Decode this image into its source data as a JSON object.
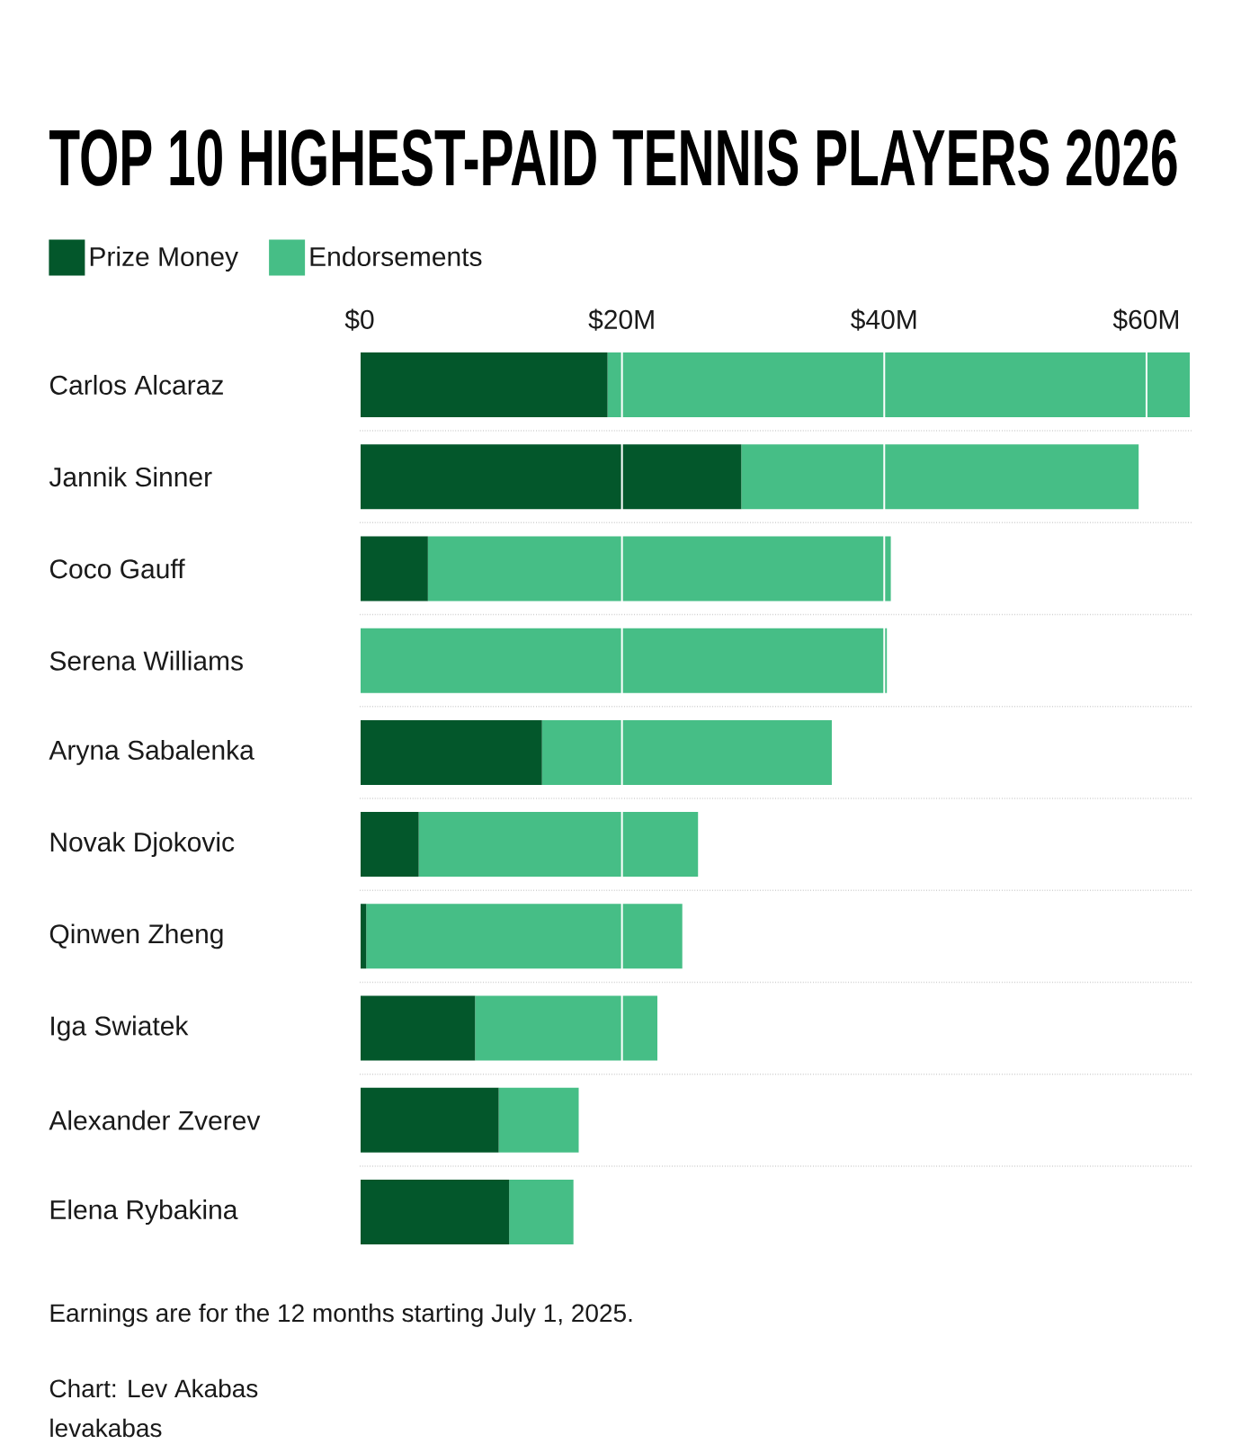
{
  "chart_data": {
    "type": "bar",
    "orientation": "horizontal",
    "stacked": true,
    "title": "TOP 10 HIGHEST-PAID TENNIS PLAYERS 2026",
    "categories": [
      "Carlos Alcaraz",
      "Jannik Sinner",
      "Coco Gauff",
      "Serena Williams",
      "Aryna Sabalenka",
      "Novak Djokovic",
      "Qinwen Zheng",
      "Iga Swiatek",
      "Alexander Zverev",
      "Elena Rybakina"
    ],
    "series": [
      {
        "name": "Prize Money",
        "color": "#03572b",
        "values": [
          18.9,
          29.1,
          5.2,
          0,
          13.9,
          4.5,
          0.5,
          8.8,
          10.6,
          11.4
        ]
      },
      {
        "name": "Endorsements",
        "color": "#46be86",
        "values": [
          44.4,
          30.3,
          35.3,
          40.2,
          22.1,
          21.3,
          24.1,
          13.9,
          6.1,
          4.9
        ]
      }
    ],
    "xlim": [
      0,
      63.5
    ],
    "xticks": [
      {
        "value": 0,
        "label": "$0"
      },
      {
        "value": 20,
        "label": "$20M"
      },
      {
        "value": 40,
        "label": "$40M"
      },
      {
        "value": 60,
        "label": "$60M"
      }
    ],
    "grid": true,
    "legend": "top left",
    "annotations": [
      "Earnings are for the 12 months starting July 1, 2025.",
      "Chart: Lev Akabas",
      "levakabas"
    ]
  }
}
